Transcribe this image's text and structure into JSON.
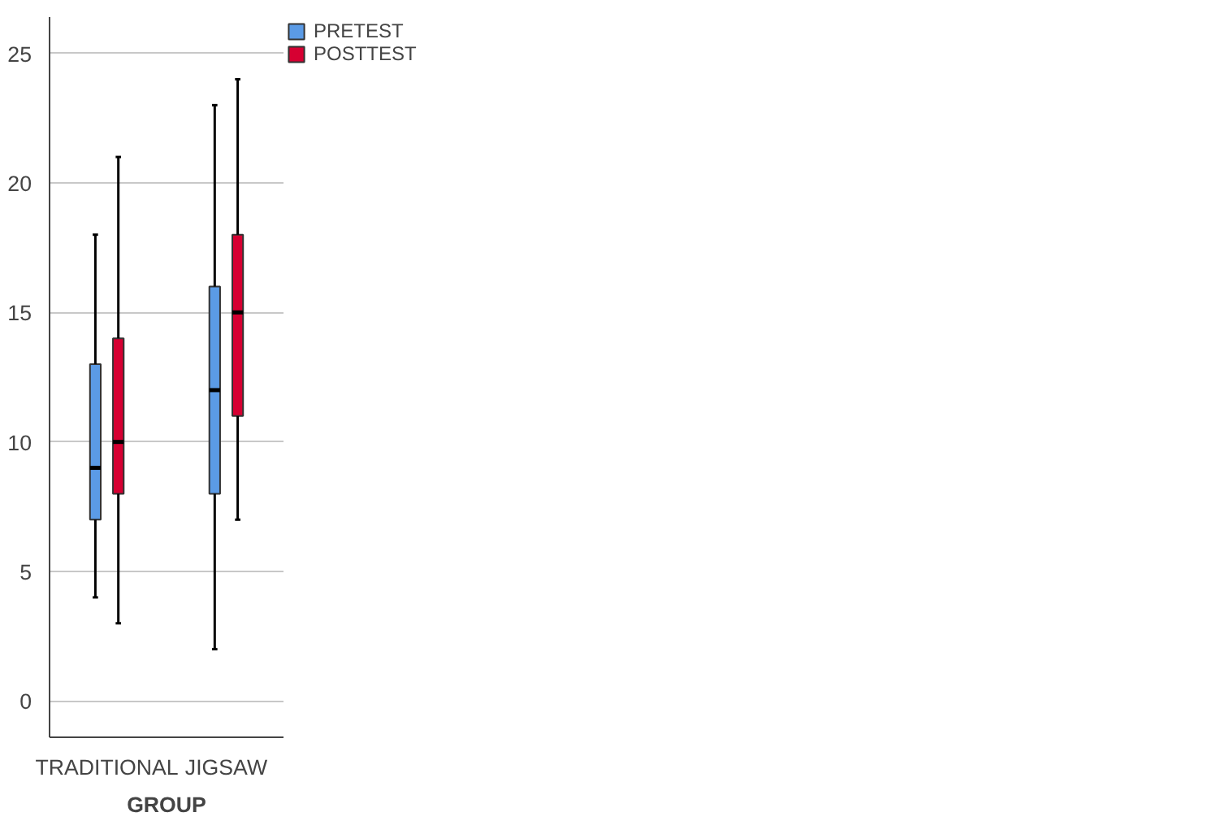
{
  "chart_data": {
    "type": "box",
    "xlabel": "GROUP",
    "categories": [
      "TRADITIONAL",
      "JIGSAW"
    ],
    "series": [
      {
        "name": "PRETEST",
        "color": "#5b9be6",
        "boxes": [
          {
            "low": 4,
            "q1": 7,
            "median": 9,
            "q3": 13,
            "high": 18
          },
          {
            "low": 2,
            "q1": 8,
            "median": 12,
            "q3": 16,
            "high": 23
          }
        ]
      },
      {
        "name": "POSTTEST",
        "color": "#d60032",
        "boxes": [
          {
            "low": 3,
            "q1": 8,
            "median": 10,
            "q3": 14,
            "high": 21
          },
          {
            "low": 7,
            "q1": 11,
            "median": 15,
            "q3": 18,
            "high": 24
          }
        ]
      }
    ],
    "ylim": [
      -1.4,
      26.4
    ],
    "yticks": [
      0,
      5,
      10,
      15,
      20,
      25
    ],
    "grid": "y",
    "legend": "top right"
  }
}
